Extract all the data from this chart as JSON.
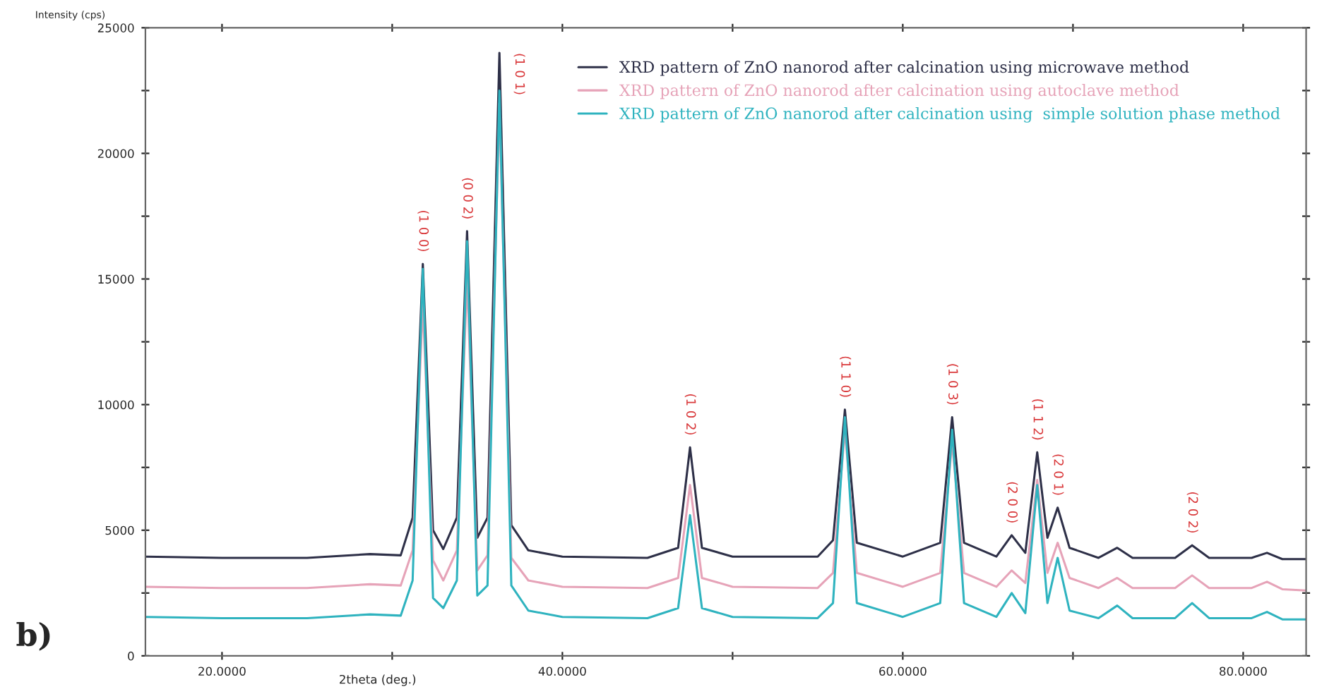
{
  "chart_data": {
    "type": "line",
    "xlabel": "2theta (deg.)",
    "ylabel": "Intensity (cps)",
    "x": [
      15.5,
      20,
      25,
      28.7,
      30.5,
      31.2,
      31.8,
      32.4,
      33.0,
      33.8,
      34.4,
      35.0,
      35.6,
      36.3,
      37.0,
      38.0,
      40,
      45,
      46.8,
      47.5,
      48.2,
      50,
      55,
      55.9,
      56.6,
      57.3,
      60,
      62.2,
      62.9,
      63.6,
      65.5,
      66.4,
      67.2,
      67.9,
      68.5,
      69.1,
      69.8,
      71.5,
      72.6,
      73.5,
      76,
      77.0,
      78,
      80.5,
      81.4,
      82.3,
      83.7
    ],
    "series": [
      {
        "name": "XRD pattern of ZnO nanorod after calcination using microwave method",
        "color": "#2e3048",
        "values": [
          3950,
          3900,
          3900,
          4050,
          4000,
          5500,
          15600,
          5000,
          4250,
          5500,
          16900,
          4700,
          5500,
          24000,
          5200,
          4200,
          3950,
          3900,
          4300,
          8300,
          4300,
          3950,
          3950,
          4600,
          9800,
          4500,
          3950,
          4500,
          9500,
          4500,
          3950,
          4800,
          4100,
          8100,
          4700,
          5900,
          4300,
          3900,
          4300,
          3900,
          3900,
          4400,
          3900,
          3900,
          4100,
          3850,
          3850
        ]
      },
      {
        "name": "XRD pattern of ZnO nanorod after calcination using autoclave method",
        "color": "#e6a3b8",
        "values": [
          2750,
          2700,
          2700,
          2850,
          2800,
          4200,
          14000,
          3800,
          3000,
          4200,
          15000,
          3400,
          4000,
          22000,
          3900,
          3000,
          2750,
          2700,
          3100,
          6800,
          3100,
          2750,
          2700,
          3300,
          9000,
          3300,
          2750,
          3300,
          8500,
          3300,
          2750,
          3400,
          2900,
          7000,
          3300,
          4500,
          3100,
          2700,
          3100,
          2700,
          2700,
          3200,
          2700,
          2700,
          2950,
          2650,
          2600
        ]
      },
      {
        "name": "XRD pattern of ZnO nanorod after calcination using  simple solution phase method",
        "color": "#2fb3bf",
        "values": [
          1550,
          1500,
          1500,
          1650,
          1600,
          3000,
          15400,
          2300,
          1900,
          3000,
          16500,
          2400,
          2800,
          22500,
          2800,
          1800,
          1550,
          1500,
          1900,
          5600,
          1900,
          1550,
          1500,
          2100,
          9500,
          2100,
          1550,
          2100,
          9000,
          2100,
          1550,
          2500,
          1700,
          6800,
          2100,
          3900,
          1800,
          1500,
          2000,
          1500,
          1500,
          2100,
          1500,
          1500,
          1750,
          1450,
          1450
        ]
      }
    ],
    "xlim": [
      15.5,
      83.7
    ],
    "ylim": [
      0,
      25000
    ],
    "xticks": [
      {
        "value": 20,
        "label": "20.0000"
      },
      {
        "value": 30,
        "label": null
      },
      {
        "value": 40,
        "label": "40.0000"
      },
      {
        "value": 50,
        "label": null
      },
      {
        "value": 60,
        "label": "60.0000"
      },
      {
        "value": 70,
        "label": null
      },
      {
        "value": 80,
        "label": "80.0000"
      }
    ],
    "yticks": [
      0,
      {
        "value": 2500,
        "label": null
      },
      5000,
      {
        "value": 7500,
        "label": null
      },
      10000,
      {
        "value": 12500,
        "label": null
      },
      15000,
      {
        "value": 17500,
        "label": null
      },
      20000,
      {
        "value": 22500,
        "label": null
      },
      25000
    ],
    "grid": false,
    "legend": "top right",
    "marker": "none",
    "line_style": "solid",
    "annotations": [
      {
        "text": "(1 0 0)",
        "x": 31.8,
        "y": 15600
      },
      {
        "text": "(0 0 2)",
        "x": 34.4,
        "y": 16900
      },
      {
        "text": "(1 0 1)",
        "x": 36.3,
        "y": 24000
      },
      {
        "text": "(1 0 2)",
        "x": 47.5,
        "y": 8300
      },
      {
        "text": "(1 1 0)",
        "x": 56.6,
        "y": 9800
      },
      {
        "text": "(1 0 3)",
        "x": 62.9,
        "y": 9500
      },
      {
        "text": "(2 0 0)",
        "x": 66.4,
        "y": 4800
      },
      {
        "text": "(1 1 2)",
        "x": 67.9,
        "y": 8100
      },
      {
        "text": "(2 0 1)",
        "x": 69.1,
        "y": 5900
      },
      {
        "text": "(2 0 2)",
        "x": 77.0,
        "y": 4400
      },
      "b)"
    ]
  }
}
